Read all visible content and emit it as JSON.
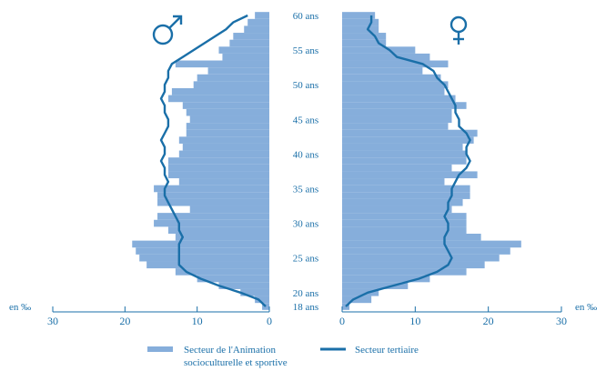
{
  "chart_data": {
    "type": "bar",
    "subtype": "population-pyramid",
    "title": "",
    "unit_label": "en ‰",
    "age_labels": [
      "18 ans",
      "20 ans",
      "25 ans",
      "30 ans",
      "35 ans",
      "40 ans",
      "45 ans",
      "50 ans",
      "55 ans",
      "60 ans"
    ],
    "x_ticks": [
      0,
      10,
      20,
      30
    ],
    "xlim": [
      0,
      30
    ],
    "age_range": [
      18,
      60
    ],
    "colors": {
      "bar": "#86aedb",
      "line": "#1a6fa8",
      "axis": "#1a6fa8"
    },
    "sex_symbols": {
      "left": "male-symbol",
      "right": "female-symbol"
    },
    "ages": [
      18,
      19,
      20,
      21,
      22,
      23,
      24,
      25,
      26,
      27,
      28,
      29,
      30,
      31,
      32,
      33,
      34,
      35,
      36,
      37,
      38,
      39,
      40,
      41,
      42,
      43,
      44,
      45,
      46,
      47,
      48,
      49,
      50,
      51,
      52,
      53,
      54,
      55,
      56,
      57,
      58,
      59,
      60
    ],
    "series": [
      {
        "name": "Secteur de l'Animation socioculturelle et sportive",
        "sex": "hommes",
        "values": [
          1.0,
          2.0,
          4.0,
          7.0,
          10.0,
          13.0,
          17.0,
          18.0,
          18.5,
          19.0,
          13.0,
          14.0,
          16.0,
          15.5,
          11.0,
          15.5,
          15.5,
          16.0,
          12.5,
          14.0,
          14.0,
          14.0,
          12.5,
          12.0,
          12.5,
          11.5,
          11.5,
          11.0,
          11.5,
          12.0,
          14.0,
          13.5,
          10.5,
          10.0,
          8.5,
          13.0,
          6.5,
          7.0,
          5.5,
          5.0,
          3.5,
          3.0,
          2.0
        ]
      },
      {
        "name": "Secteur de l'Animation socioculturelle et sportive",
        "sex": "femmes",
        "values": [
          1.0,
          4.0,
          5.0,
          9.0,
          12.0,
          17.0,
          19.5,
          21.5,
          23.0,
          24.5,
          19.0,
          17.0,
          17.0,
          17.0,
          15.0,
          16.5,
          17.5,
          17.5,
          14.0,
          18.5,
          15.0,
          17.0,
          17.0,
          16.5,
          18.0,
          18.5,
          14.5,
          15.0,
          15.0,
          17.0,
          15.5,
          14.0,
          14.5,
          13.5,
          11.0,
          14.5,
          12.0,
          10.0,
          6.0,
          6.0,
          5.0,
          5.0,
          4.5
        ]
      },
      {
        "name": "Secteur tertiaire",
        "sex": "hommes",
        "values": [
          0.5,
          1.5,
          4.0,
          7.0,
          9.5,
          11.5,
          12.5,
          12.5,
          12.5,
          12.5,
          12.0,
          12.5,
          12.5,
          13.0,
          13.5,
          14.0,
          14.5,
          14.5,
          14.0,
          14.5,
          14.5,
          15.0,
          14.5,
          14.5,
          15.0,
          14.5,
          14.0,
          14.0,
          14.5,
          14.5,
          15.0,
          14.5,
          14.5,
          14.0,
          14.0,
          13.5,
          12.0,
          10.5,
          9.0,
          7.5,
          6.0,
          5.0,
          3.0
        ]
      },
      {
        "name": "Secteur tertiaire",
        "sex": "femmes",
        "values": [
          0.5,
          1.5,
          3.5,
          7.0,
          10.5,
          13.0,
          14.5,
          15.0,
          14.5,
          14.0,
          14.0,
          14.5,
          14.5,
          14.0,
          14.5,
          14.5,
          15.0,
          15.0,
          15.5,
          16.0,
          17.0,
          17.5,
          17.0,
          17.0,
          17.5,
          17.0,
          16.0,
          16.0,
          15.5,
          15.5,
          15.0,
          14.5,
          14.0,
          13.0,
          12.5,
          11.0,
          7.5,
          6.5,
          5.0,
          4.5,
          3.5,
          4.0,
          4.0
        ]
      }
    ],
    "legend": [
      {
        "label": "Secteur de l'Animation",
        "label2": "socioculturelle et sportive",
        "swatch": "bar"
      },
      {
        "label": "Secteur tertiaire",
        "swatch": "line"
      }
    ]
  }
}
